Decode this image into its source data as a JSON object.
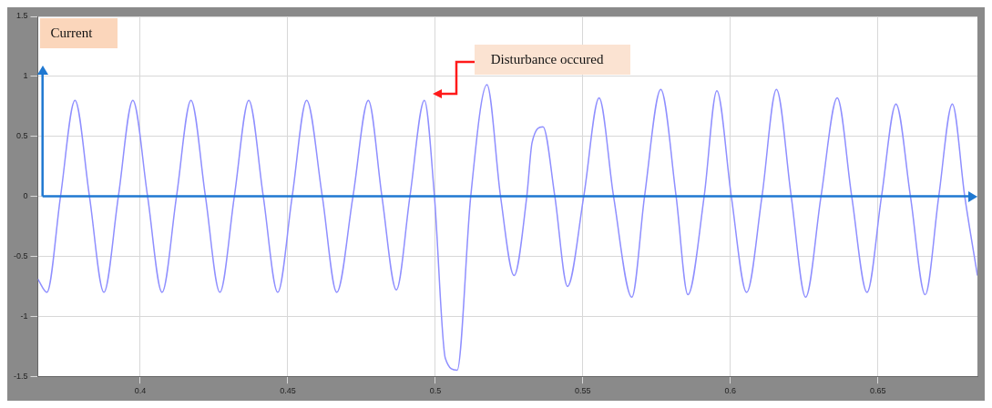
{
  "chart_data": {
    "type": "line",
    "x": [
      0.3653,
      0.3684,
      0.373,
      0.3779,
      0.3828,
      0.3877,
      0.3926,
      0.3975,
      0.4025,
      0.4074,
      0.4123,
      0.4172,
      0.4221,
      0.427,
      0.4319,
      0.4368,
      0.4417,
      0.4466,
      0.4515,
      0.4564,
      0.4617,
      0.4666,
      0.4721,
      0.4773,
      0.4819,
      0.4868,
      0.4914,
      0.4963,
      0.4997,
      0.5034,
      0.5074,
      0.512,
      0.5175,
      0.5221,
      0.5267,
      0.531,
      0.5328,
      0.5365,
      0.5405,
      0.5448,
      0.5503,
      0.5555,
      0.5604,
      0.5666,
      0.5709,
      0.5764,
      0.5816,
      0.5856,
      0.5911,
      0.5954,
      0.6003,
      0.6055,
      0.6107,
      0.6156,
      0.6206,
      0.6255,
      0.6307,
      0.6362,
      0.6411,
      0.6463,
      0.6512,
      0.6561,
      0.661,
      0.666,
      0.6706,
      0.6752,
      0.6794,
      0.6837
    ],
    "series": [
      {
        "color": "#8f8fff",
        "values": [
          -0.69,
          -0.8,
          0,
          0.8,
          0,
          -0.8,
          0,
          0.8,
          0,
          -0.8,
          0,
          0.8,
          0,
          -0.8,
          0,
          0.8,
          0,
          -0.8,
          0,
          0.8,
          0,
          -0.8,
          0,
          0.8,
          0,
          -0.78,
          0,
          0.8,
          0,
          -1.35,
          -1.45,
          0,
          0.93,
          0,
          -0.66,
          0,
          0.45,
          0.58,
          0,
          -0.75,
          0,
          0.82,
          0,
          -0.84,
          0,
          0.89,
          0,
          -0.82,
          0,
          0.88,
          0,
          -0.8,
          0,
          0.89,
          0,
          -0.84,
          0,
          0.82,
          0,
          -0.8,
          0,
          0.77,
          0,
          -0.82,
          0,
          0.77,
          0,
          -0.66
        ]
      }
    ],
    "xlim": [
      0.3653,
      0.6837
    ],
    "xticks": [
      0.4,
      0.45,
      0.5,
      0.55,
      0.6,
      0.65
    ],
    "ylim": [
      -1.5,
      1.5
    ],
    "yticks": [
      -1.5,
      -1,
      -0.5,
      0,
      0.5,
      1,
      1.5
    ],
    "grid": true,
    "line_style": "solid",
    "marker": "none",
    "legend": false,
    "ref_lines": [
      {
        "axis": "y",
        "value": 0,
        "color": "#1f78d1"
      },
      {
        "axis": "x",
        "value": 0.3669,
        "color": "#1f78d1"
      }
    ],
    "annotations": [
      "Current",
      "Disturbance occured"
    ]
  }
}
